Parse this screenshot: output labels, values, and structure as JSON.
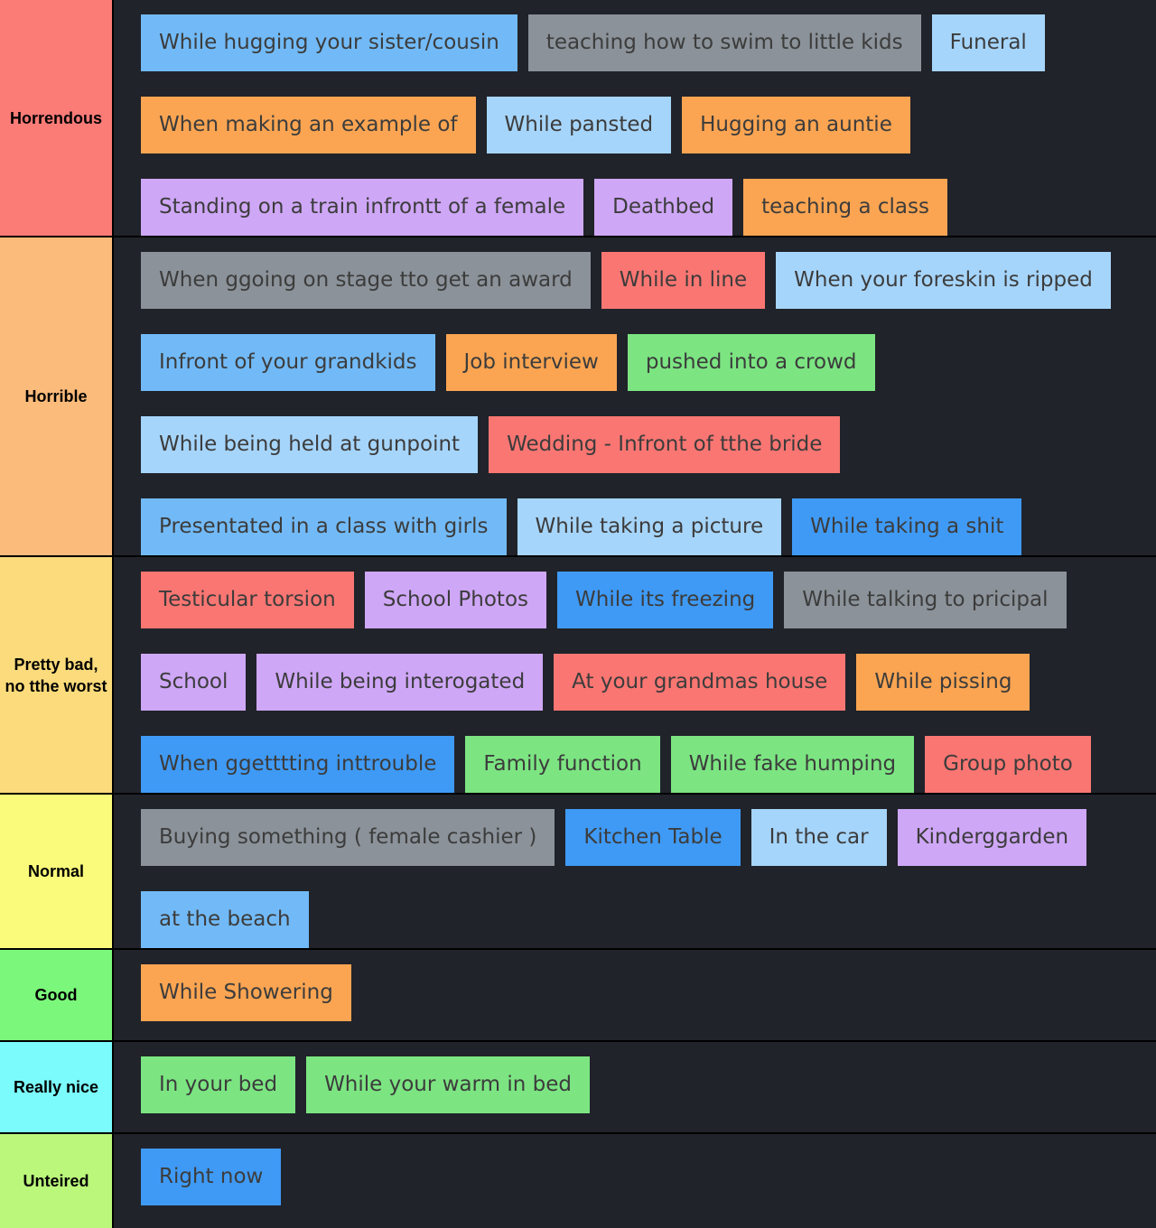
{
  "tiers": [
    {
      "label": "Horrendous",
      "color": "#fb7b77",
      "items": [
        {
          "text": "While hugging your sister/cousin",
          "color": "blue"
        },
        {
          "text": "teaching how to swim to little kids",
          "color": "gray"
        },
        {
          "text": "Funeral",
          "color": "lblue"
        },
        {
          "text": "When making an example of",
          "color": "orange"
        },
        {
          "text": "While pansted",
          "color": "lblue"
        },
        {
          "text": "Hugging an auntie",
          "color": "orange"
        },
        {
          "text": "Standing on a train infrontt of a female",
          "color": "purple"
        },
        {
          "text": "Deathbed",
          "color": "purple"
        },
        {
          "text": "teaching a class",
          "color": "orange"
        }
      ]
    },
    {
      "label": "Horrible",
      "color": "#fbbb7b",
      "items": [
        {
          "text": "When ggoing on stage tto get an award",
          "color": "gray"
        },
        {
          "text": "While in line",
          "color": "red"
        },
        {
          "text": "When your foreskin is ripped",
          "color": "lblue"
        },
        {
          "text": "Infront of your grandkids",
          "color": "blue"
        },
        {
          "text": "Job interview",
          "color": "orange"
        },
        {
          "text": "pushed into a crowd",
          "color": "green"
        },
        {
          "text": "While being held at gunpoint",
          "color": "lblue"
        },
        {
          "text": "Wedding - Infront of tthe bride",
          "color": "red"
        },
        {
          "text": "Presentated in a class with girls",
          "color": "blue"
        },
        {
          "text": "While taking a picture",
          "color": "lblue"
        },
        {
          "text": "While taking a shit",
          "color": "dblue"
        }
      ]
    },
    {
      "label": "Pretty bad, no tthe worst",
      "color": "#fbdb7b",
      "items": [
        {
          "text": "Testicular torsion",
          "color": "red"
        },
        {
          "text": "School Photos",
          "color": "purple"
        },
        {
          "text": "While its freezing",
          "color": "dblue"
        },
        {
          "text": "While talking to pricipal",
          "color": "gray"
        },
        {
          "text": "School",
          "color": "purple"
        },
        {
          "text": "While being interogated",
          "color": "purple"
        },
        {
          "text": "At your grandmas house",
          "color": "red"
        },
        {
          "text": "While pissing",
          "color": "orange"
        },
        {
          "text": "When ggetttting inttrouble",
          "color": "dblue"
        },
        {
          "text": "Family function",
          "color": "green"
        },
        {
          "text": "While fake humping",
          "color": "green"
        },
        {
          "text": "Group photo",
          "color": "red"
        }
      ]
    },
    {
      "label": "Normal",
      "color": "#fbfb7b",
      "items": [
        {
          "text": "Buying something ( female cashier )",
          "color": "gray"
        },
        {
          "text": "Kitchen Table",
          "color": "dblue"
        },
        {
          "text": "In the car",
          "color": "lblue"
        },
        {
          "text": "Kinderggarden",
          "color": "purple"
        },
        {
          "text": "at the beach",
          "color": "blue"
        }
      ]
    },
    {
      "label": "Good",
      "color": "#7bf77b",
      "items": [
        {
          "text": "While Showering",
          "color": "orange"
        }
      ]
    },
    {
      "label": "Really nice",
      "color": "#7bfbfb",
      "items": [
        {
          "text": "In your bed",
          "color": "green"
        },
        {
          "text": "While your warm in bed",
          "color": "green"
        }
      ]
    },
    {
      "label": "Unteired",
      "color": "#bbf77b",
      "items": [
        {
          "text": "Right now",
          "color": "dblue"
        }
      ]
    }
  ]
}
